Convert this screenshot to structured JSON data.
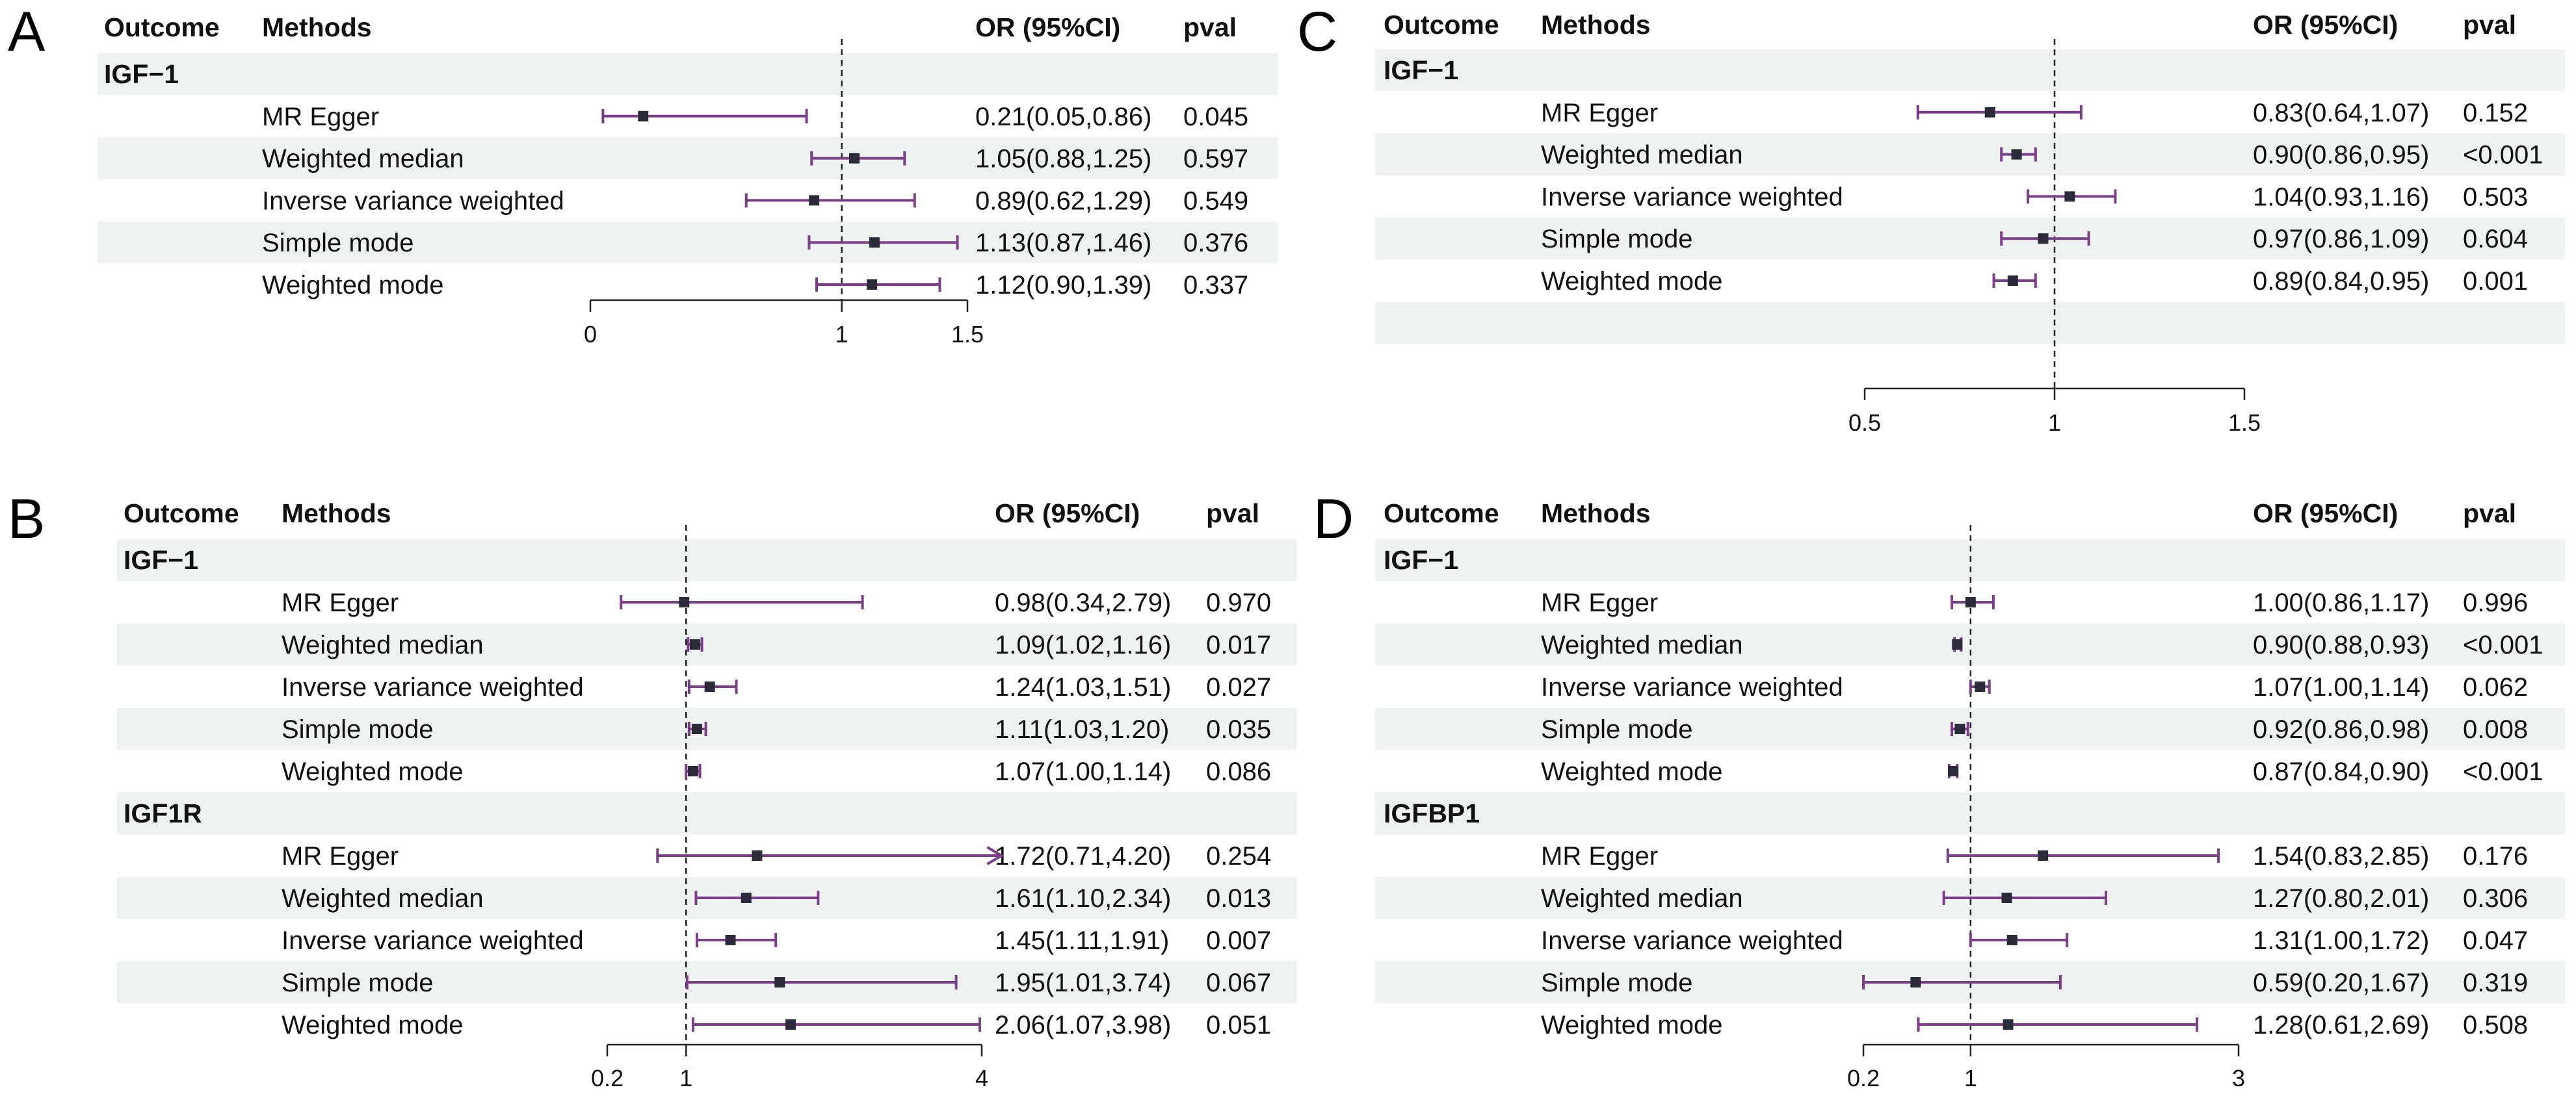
{
  "figure": {
    "accent_color": "#7b3f8a",
    "stripe_color": "#eef2f0",
    "marker_color": "#2b2b3a"
  },
  "chart_data": [
    {
      "type": "forest",
      "panel_label": "A",
      "headers": {
        "outcome": "Outcome",
        "methods": "Methods",
        "or": "OR (95%CI)",
        "pval": "pval"
      },
      "xlim": [
        0,
        1.5
      ],
      "ticks": [
        0,
        1,
        1.5
      ],
      "tick_labels": [
        "0",
        "1",
        "1.5"
      ],
      "reference_line": 1,
      "groups": [
        {
          "outcome": "IGF−1",
          "rows": [
            {
              "method": "MR Egger",
              "or": 0.21,
              "lo": 0.05,
              "hi": 0.86,
              "or_text": "0.21(0.05,0.86)",
              "pval": "0.045"
            },
            {
              "method": "Weighted median",
              "or": 1.05,
              "lo": 0.88,
              "hi": 1.25,
              "or_text": "1.05(0.88,1.25)",
              "pval": "0.597"
            },
            {
              "method": "Inverse variance weighted",
              "or": 0.89,
              "lo": 0.62,
              "hi": 1.29,
              "or_text": "0.89(0.62,1.29)",
              "pval": "0.549"
            },
            {
              "method": "Simple mode",
              "or": 1.13,
              "lo": 0.87,
              "hi": 1.46,
              "or_text": "1.13(0.87,1.46)",
              "pval": "0.376"
            },
            {
              "method": "Weighted mode",
              "or": 1.12,
              "lo": 0.9,
              "hi": 1.39,
              "or_text": "1.12(0.90,1.39)",
              "pval": "0.337"
            }
          ]
        }
      ]
    },
    {
      "type": "forest",
      "panel_label": "B",
      "headers": {
        "outcome": "Outcome",
        "methods": "Methods",
        "or": "OR (95%CI)",
        "pval": "pval"
      },
      "xlim": [
        0.2,
        4
      ],
      "ticks": [
        0.2,
        1,
        4
      ],
      "tick_labels": [
        "0.2",
        "1",
        "4"
      ],
      "reference_line": 1,
      "groups": [
        {
          "outcome": "IGF−1",
          "rows": [
            {
              "method": "MR Egger",
              "or": 0.98,
              "lo": 0.34,
              "hi": 2.79,
              "or_text": "0.98(0.34,2.79)",
              "pval": "0.970"
            },
            {
              "method": "Weighted median",
              "or": 1.09,
              "lo": 1.02,
              "hi": 1.16,
              "or_text": "1.09(1.02,1.16)",
              "pval": "0.017"
            },
            {
              "method": "Inverse variance weighted",
              "or": 1.24,
              "lo": 1.03,
              "hi": 1.51,
              "or_text": "1.24(1.03,1.51)",
              "pval": "0.027"
            },
            {
              "method": "Simple mode",
              "or": 1.11,
              "lo": 1.03,
              "hi": 1.2,
              "or_text": "1.11(1.03,1.20)",
              "pval": "0.035"
            },
            {
              "method": "Weighted mode",
              "or": 1.07,
              "lo": 1.0,
              "hi": 1.14,
              "or_text": "1.07(1.00,1.14)",
              "pval": "0.086"
            }
          ]
        },
        {
          "outcome": "IGF1R",
          "rows": [
            {
              "method": "MR Egger",
              "or": 1.72,
              "lo": 0.71,
              "hi": 4.2,
              "or_text": "1.72(0.71,4.20)",
              "pval": "0.254",
              "arrow": true
            },
            {
              "method": "Weighted median",
              "or": 1.61,
              "lo": 1.1,
              "hi": 2.34,
              "or_text": "1.61(1.10,2.34)",
              "pval": "0.013"
            },
            {
              "method": "Inverse variance weighted",
              "or": 1.45,
              "lo": 1.11,
              "hi": 1.91,
              "or_text": "1.45(1.11,1.91)",
              "pval": "0.007"
            },
            {
              "method": "Simple mode",
              "or": 1.95,
              "lo": 1.01,
              "hi": 3.74,
              "or_text": "1.95(1.01,3.74)",
              "pval": "0.067"
            },
            {
              "method": "Weighted mode",
              "or": 2.06,
              "lo": 1.07,
              "hi": 3.98,
              "or_text": "2.06(1.07,3.98)",
              "pval": "0.051"
            }
          ]
        }
      ]
    },
    {
      "type": "forest",
      "panel_label": "C",
      "headers": {
        "outcome": "Outcome",
        "methods": "Methods",
        "or": "OR (95%CI)",
        "pval": "pval"
      },
      "xlim": [
        0.5,
        1.5
      ],
      "ticks": [
        0.5,
        1,
        1.5
      ],
      "tick_labels": [
        "0.5",
        "1",
        "1.5"
      ],
      "reference_line": 1,
      "groups": [
        {
          "outcome": "IGF−1",
          "rows": [
            {
              "method": "MR Egger",
              "or": 0.83,
              "lo": 0.64,
              "hi": 1.07,
              "or_text": "0.83(0.64,1.07)",
              "pval": "0.152"
            },
            {
              "method": "Weighted median",
              "or": 0.9,
              "lo": 0.86,
              "hi": 0.95,
              "or_text": "0.90(0.86,0.95)",
              "pval": "<0.001"
            },
            {
              "method": "Inverse variance weighted",
              "or": 1.04,
              "lo": 0.93,
              "hi": 1.16,
              "or_text": "1.04(0.93,1.16)",
              "pval": "0.503"
            },
            {
              "method": "Simple mode",
              "or": 0.97,
              "lo": 0.86,
              "hi": 1.09,
              "or_text": "0.97(0.86,1.09)",
              "pval": "0.604"
            },
            {
              "method": "Weighted mode",
              "or": 0.89,
              "lo": 0.84,
              "hi": 0.95,
              "or_text": "0.89(0.84,0.95)",
              "pval": "0.001"
            }
          ]
        }
      ]
    },
    {
      "type": "forest",
      "panel_label": "D",
      "headers": {
        "outcome": "Outcome",
        "methods": "Methods",
        "or": "OR (95%CI)",
        "pval": "pval"
      },
      "xlim": [
        0.2,
        3
      ],
      "ticks": [
        0.2,
        1,
        3
      ],
      "tick_labels": [
        "0.2",
        "1",
        "3"
      ],
      "reference_line": 1,
      "groups": [
        {
          "outcome": "IGF−1",
          "rows": [
            {
              "method": "MR Egger",
              "or": 1.0,
              "lo": 0.86,
              "hi": 1.17,
              "or_text": "1.00(0.86,1.17)",
              "pval": "0.996"
            },
            {
              "method": "Weighted median",
              "or": 0.9,
              "lo": 0.88,
              "hi": 0.93,
              "or_text": "0.90(0.88,0.93)",
              "pval": "<0.001"
            },
            {
              "method": "Inverse variance weighted",
              "or": 1.07,
              "lo": 1.0,
              "hi": 1.14,
              "or_text": "1.07(1.00,1.14)",
              "pval": "0.062"
            },
            {
              "method": "Simple mode",
              "or": 0.92,
              "lo": 0.86,
              "hi": 0.98,
              "or_text": "0.92(0.86,0.98)",
              "pval": "0.008"
            },
            {
              "method": "Weighted mode",
              "or": 0.87,
              "lo": 0.84,
              "hi": 0.9,
              "or_text": "0.87(0.84,0.90)",
              "pval": "<0.001"
            }
          ]
        },
        {
          "outcome": "IGFBP1",
          "rows": [
            {
              "method": "MR Egger",
              "or": 1.54,
              "lo": 0.83,
              "hi": 2.85,
              "or_text": "1.54(0.83,2.85)",
              "pval": "0.176"
            },
            {
              "method": "Weighted median",
              "or": 1.27,
              "lo": 0.8,
              "hi": 2.01,
              "or_text": "1.27(0.80,2.01)",
              "pval": "0.306"
            },
            {
              "method": "Inverse variance weighted",
              "or": 1.31,
              "lo": 1.0,
              "hi": 1.72,
              "or_text": "1.31(1.00,1.72)",
              "pval": "0.047"
            },
            {
              "method": "Simple mode",
              "or": 0.59,
              "lo": 0.2,
              "hi": 1.67,
              "or_text": "0.59(0.20,1.67)",
              "pval": "0.319"
            },
            {
              "method": "Weighted mode",
              "or": 1.28,
              "lo": 0.61,
              "hi": 2.69,
              "or_text": "1.28(0.61,2.69)",
              "pval": "0.508"
            }
          ]
        }
      ]
    }
  ]
}
